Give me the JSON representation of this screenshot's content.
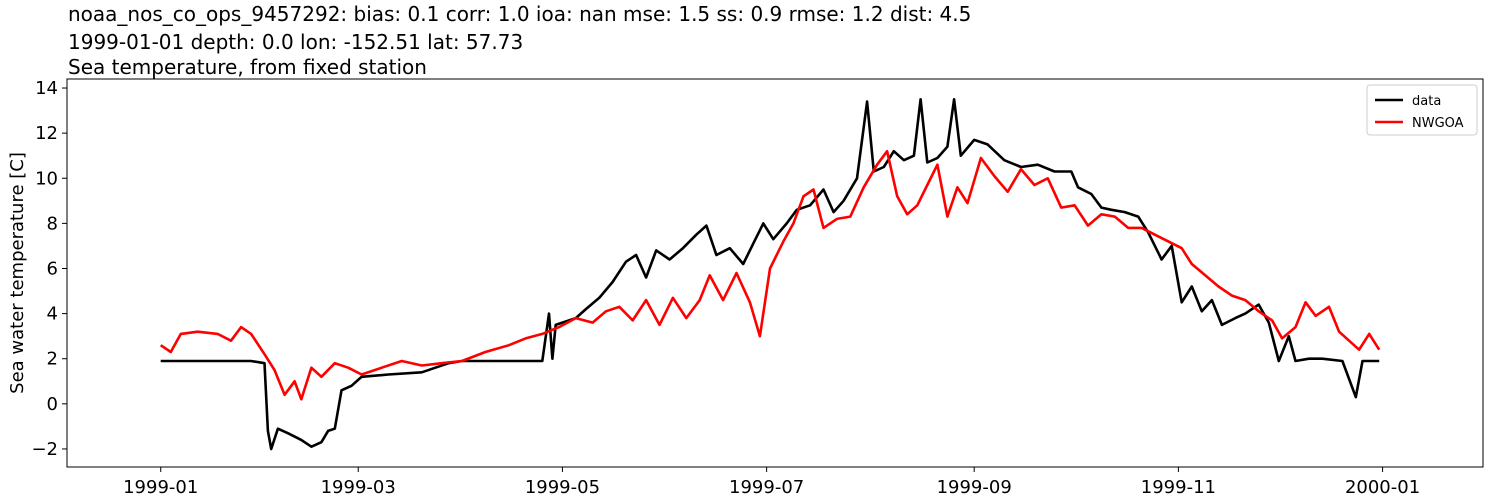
{
  "header": {
    "title_line1": "noaa_nos_co_ops_9457292: bias: 0.1  corr: 1.0  ioa: nan  mse: 1.5  ss: 0.9  rmse: 1.2  dist: 4.5",
    "title_line2": "1999-01-01 depth: 0.0 lon: -152.51 lat: 57.73",
    "title_line3": "Sea temperature, from fixed station"
  },
  "chart_data": {
    "type": "line",
    "xlabel": "",
    "ylabel": "Sea water temperature [C]",
    "xlim": [
      "1998-12-04",
      "2000-01-31"
    ],
    "ylim": [
      -2.8,
      14.4
    ],
    "x_ticks": [
      "1999-01",
      "1999-03",
      "1999-05",
      "1999-07",
      "1999-09",
      "1999-11",
      "2000-01"
    ],
    "y_ticks": [
      -2,
      0,
      2,
      4,
      6,
      8,
      10,
      12,
      14
    ],
    "legend_position": "top-right",
    "series": [
      {
        "name": "data",
        "color": "#000000",
        "points": [
          [
            "1999-01-01",
            1.9
          ],
          [
            "1999-01-10",
            1.9
          ],
          [
            "1999-01-20",
            1.9
          ],
          [
            "1999-01-28",
            1.9
          ],
          [
            "1999-02-01",
            1.8
          ],
          [
            "1999-02-02",
            -1.2
          ],
          [
            "1999-02-03",
            -2.0
          ],
          [
            "1999-02-05",
            -1.1
          ],
          [
            "1999-02-08",
            -1.3
          ],
          [
            "1999-02-12",
            -1.6
          ],
          [
            "1999-02-15",
            -1.9
          ],
          [
            "1999-02-18",
            -1.7
          ],
          [
            "1999-02-20",
            -1.2
          ],
          [
            "1999-02-22",
            -1.1
          ],
          [
            "1999-02-24",
            0.6
          ],
          [
            "1999-02-27",
            0.8
          ],
          [
            "1999-03-02",
            1.2
          ],
          [
            "1999-03-10",
            1.3
          ],
          [
            "1999-03-20",
            1.4
          ],
          [
            "1999-03-28",
            1.8
          ],
          [
            "1999-04-01",
            1.9
          ],
          [
            "1999-04-15",
            1.9
          ],
          [
            "1999-04-25",
            1.9
          ],
          [
            "1999-04-27",
            4.0
          ],
          [
            "1999-04-28",
            2.0
          ],
          [
            "1999-04-29",
            3.5
          ],
          [
            "1999-05-01",
            3.6
          ],
          [
            "1999-05-05",
            3.8
          ],
          [
            "1999-05-08",
            4.2
          ],
          [
            "1999-05-12",
            4.7
          ],
          [
            "1999-05-16",
            5.4
          ],
          [
            "1999-05-20",
            6.3
          ],
          [
            "1999-05-23",
            6.6
          ],
          [
            "1999-05-26",
            5.6
          ],
          [
            "1999-05-29",
            6.8
          ],
          [
            "1999-06-02",
            6.4
          ],
          [
            "1999-06-06",
            6.9
          ],
          [
            "1999-06-10",
            7.5
          ],
          [
            "1999-06-13",
            7.9
          ],
          [
            "1999-06-16",
            6.6
          ],
          [
            "1999-06-20",
            6.9
          ],
          [
            "1999-06-24",
            6.2
          ],
          [
            "1999-06-27",
            7.1
          ],
          [
            "1999-06-30",
            8.0
          ],
          [
            "1999-07-03",
            7.3
          ],
          [
            "1999-07-07",
            8.0
          ],
          [
            "1999-07-10",
            8.6
          ],
          [
            "1999-07-14",
            8.8
          ],
          [
            "1999-07-18",
            9.5
          ],
          [
            "1999-07-21",
            8.5
          ],
          [
            "1999-07-24",
            9.0
          ],
          [
            "1999-07-28",
            10.0
          ],
          [
            "1999-07-31",
            13.4
          ],
          [
            "1999-08-02",
            10.3
          ],
          [
            "1999-08-05",
            10.5
          ],
          [
            "1999-08-08",
            11.2
          ],
          [
            "1999-08-11",
            10.8
          ],
          [
            "1999-08-14",
            11.0
          ],
          [
            "1999-08-16",
            13.5
          ],
          [
            "1999-08-18",
            10.7
          ],
          [
            "1999-08-21",
            10.9
          ],
          [
            "1999-08-24",
            11.4
          ],
          [
            "1999-08-26",
            13.5
          ],
          [
            "1999-08-28",
            11.0
          ],
          [
            "1999-09-01",
            11.7
          ],
          [
            "1999-09-05",
            11.5
          ],
          [
            "1999-09-10",
            10.8
          ],
          [
            "1999-09-15",
            10.5
          ],
          [
            "1999-09-20",
            10.6
          ],
          [
            "1999-09-25",
            10.3
          ],
          [
            "1999-09-30",
            10.3
          ],
          [
            "1999-10-02",
            9.6
          ],
          [
            "1999-10-06",
            9.3
          ],
          [
            "1999-10-09",
            8.7
          ],
          [
            "1999-10-12",
            8.6
          ],
          [
            "1999-10-16",
            8.5
          ],
          [
            "1999-10-20",
            8.3
          ],
          [
            "1999-10-23",
            7.6
          ],
          [
            "1999-10-27",
            6.4
          ],
          [
            "1999-10-30",
            7.0
          ],
          [
            "1999-11-02",
            4.5
          ],
          [
            "1999-11-05",
            5.2
          ],
          [
            "1999-11-08",
            4.1
          ],
          [
            "1999-11-11",
            4.6
          ],
          [
            "1999-11-14",
            3.5
          ],
          [
            "1999-11-18",
            3.8
          ],
          [
            "1999-11-21",
            4.0
          ],
          [
            "1999-11-25",
            4.4
          ],
          [
            "1999-11-28",
            3.6
          ],
          [
            "1999-12-01",
            1.9
          ],
          [
            "1999-12-04",
            3.0
          ],
          [
            "1999-12-06",
            1.9
          ],
          [
            "1999-12-10",
            2.0
          ],
          [
            "1999-12-14",
            2.0
          ],
          [
            "1999-12-20",
            1.9
          ],
          [
            "1999-12-24",
            0.3
          ],
          [
            "1999-12-26",
            1.9
          ],
          [
            "1999-12-31",
            1.9
          ]
        ]
      },
      {
        "name": "NWGOA",
        "color": "#ff0000",
        "points": [
          [
            "1999-01-01",
            2.6
          ],
          [
            "1999-01-04",
            2.3
          ],
          [
            "1999-01-07",
            3.1
          ],
          [
            "1999-01-12",
            3.2
          ],
          [
            "1999-01-18",
            3.1
          ],
          [
            "1999-01-22",
            2.8
          ],
          [
            "1999-01-25",
            3.4
          ],
          [
            "1999-01-28",
            3.1
          ],
          [
            "1999-02-01",
            2.2
          ],
          [
            "1999-02-04",
            1.5
          ],
          [
            "1999-02-07",
            0.4
          ],
          [
            "1999-02-10",
            1.0
          ],
          [
            "1999-02-12",
            0.2
          ],
          [
            "1999-02-15",
            1.6
          ],
          [
            "1999-02-18",
            1.2
          ],
          [
            "1999-02-22",
            1.8
          ],
          [
            "1999-02-26",
            1.6
          ],
          [
            "1999-03-02",
            1.3
          ],
          [
            "1999-03-08",
            1.6
          ],
          [
            "1999-03-14",
            1.9
          ],
          [
            "1999-03-20",
            1.7
          ],
          [
            "1999-03-26",
            1.8
          ],
          [
            "1999-04-01",
            1.9
          ],
          [
            "1999-04-08",
            2.3
          ],
          [
            "1999-04-15",
            2.6
          ],
          [
            "1999-04-20",
            2.9
          ],
          [
            "1999-04-25",
            3.1
          ],
          [
            "1999-04-30",
            3.4
          ],
          [
            "1999-05-05",
            3.8
          ],
          [
            "1999-05-10",
            3.6
          ],
          [
            "1999-05-14",
            4.1
          ],
          [
            "1999-05-18",
            4.3
          ],
          [
            "1999-05-22",
            3.7
          ],
          [
            "1999-05-26",
            4.6
          ],
          [
            "1999-05-30",
            3.5
          ],
          [
            "1999-06-03",
            4.7
          ],
          [
            "1999-06-07",
            3.8
          ],
          [
            "1999-06-11",
            4.6
          ],
          [
            "1999-06-14",
            5.7
          ],
          [
            "1999-06-18",
            4.6
          ],
          [
            "1999-06-22",
            5.8
          ],
          [
            "1999-06-26",
            4.5
          ],
          [
            "1999-06-29",
            3.0
          ],
          [
            "1999-07-02",
            6.0
          ],
          [
            "1999-07-06",
            7.2
          ],
          [
            "1999-07-09",
            8.0
          ],
          [
            "1999-07-12",
            9.2
          ],
          [
            "1999-07-15",
            9.5
          ],
          [
            "1999-07-18",
            7.8
          ],
          [
            "1999-07-22",
            8.2
          ],
          [
            "1999-07-26",
            8.3
          ],
          [
            "1999-07-30",
            9.6
          ],
          [
            "1999-08-03",
            10.6
          ],
          [
            "1999-08-06",
            11.2
          ],
          [
            "1999-08-09",
            9.2
          ],
          [
            "1999-08-12",
            8.4
          ],
          [
            "1999-08-15",
            8.8
          ],
          [
            "1999-08-18",
            9.7
          ],
          [
            "1999-08-21",
            10.6
          ],
          [
            "1999-08-24",
            8.3
          ],
          [
            "1999-08-27",
            9.6
          ],
          [
            "1999-08-30",
            8.9
          ],
          [
            "1999-09-03",
            10.9
          ],
          [
            "1999-09-07",
            10.1
          ],
          [
            "1999-09-11",
            9.4
          ],
          [
            "1999-09-15",
            10.4
          ],
          [
            "1999-09-19",
            9.7
          ],
          [
            "1999-09-23",
            10.0
          ],
          [
            "1999-09-27",
            8.7
          ],
          [
            "1999-10-01",
            8.8
          ],
          [
            "1999-10-05",
            7.9
          ],
          [
            "1999-10-09",
            8.4
          ],
          [
            "1999-10-13",
            8.3
          ],
          [
            "1999-10-17",
            7.8
          ],
          [
            "1999-10-21",
            7.8
          ],
          [
            "1999-10-25",
            7.5
          ],
          [
            "1999-10-29",
            7.2
          ],
          [
            "1999-11-02",
            6.9
          ],
          [
            "1999-11-05",
            6.2
          ],
          [
            "1999-11-09",
            5.7
          ],
          [
            "1999-11-13",
            5.2
          ],
          [
            "1999-11-17",
            4.8
          ],
          [
            "1999-11-21",
            4.6
          ],
          [
            "1999-11-25",
            4.1
          ],
          [
            "1999-11-29",
            3.7
          ],
          [
            "1999-12-02",
            2.9
          ],
          [
            "1999-12-06",
            3.4
          ],
          [
            "1999-12-09",
            4.5
          ],
          [
            "1999-12-12",
            3.9
          ],
          [
            "1999-12-16",
            4.3
          ],
          [
            "1999-12-19",
            3.2
          ],
          [
            "1999-12-22",
            2.8
          ],
          [
            "1999-12-25",
            2.4
          ],
          [
            "1999-12-28",
            3.1
          ],
          [
            "1999-12-31",
            2.4
          ]
        ]
      }
    ]
  }
}
